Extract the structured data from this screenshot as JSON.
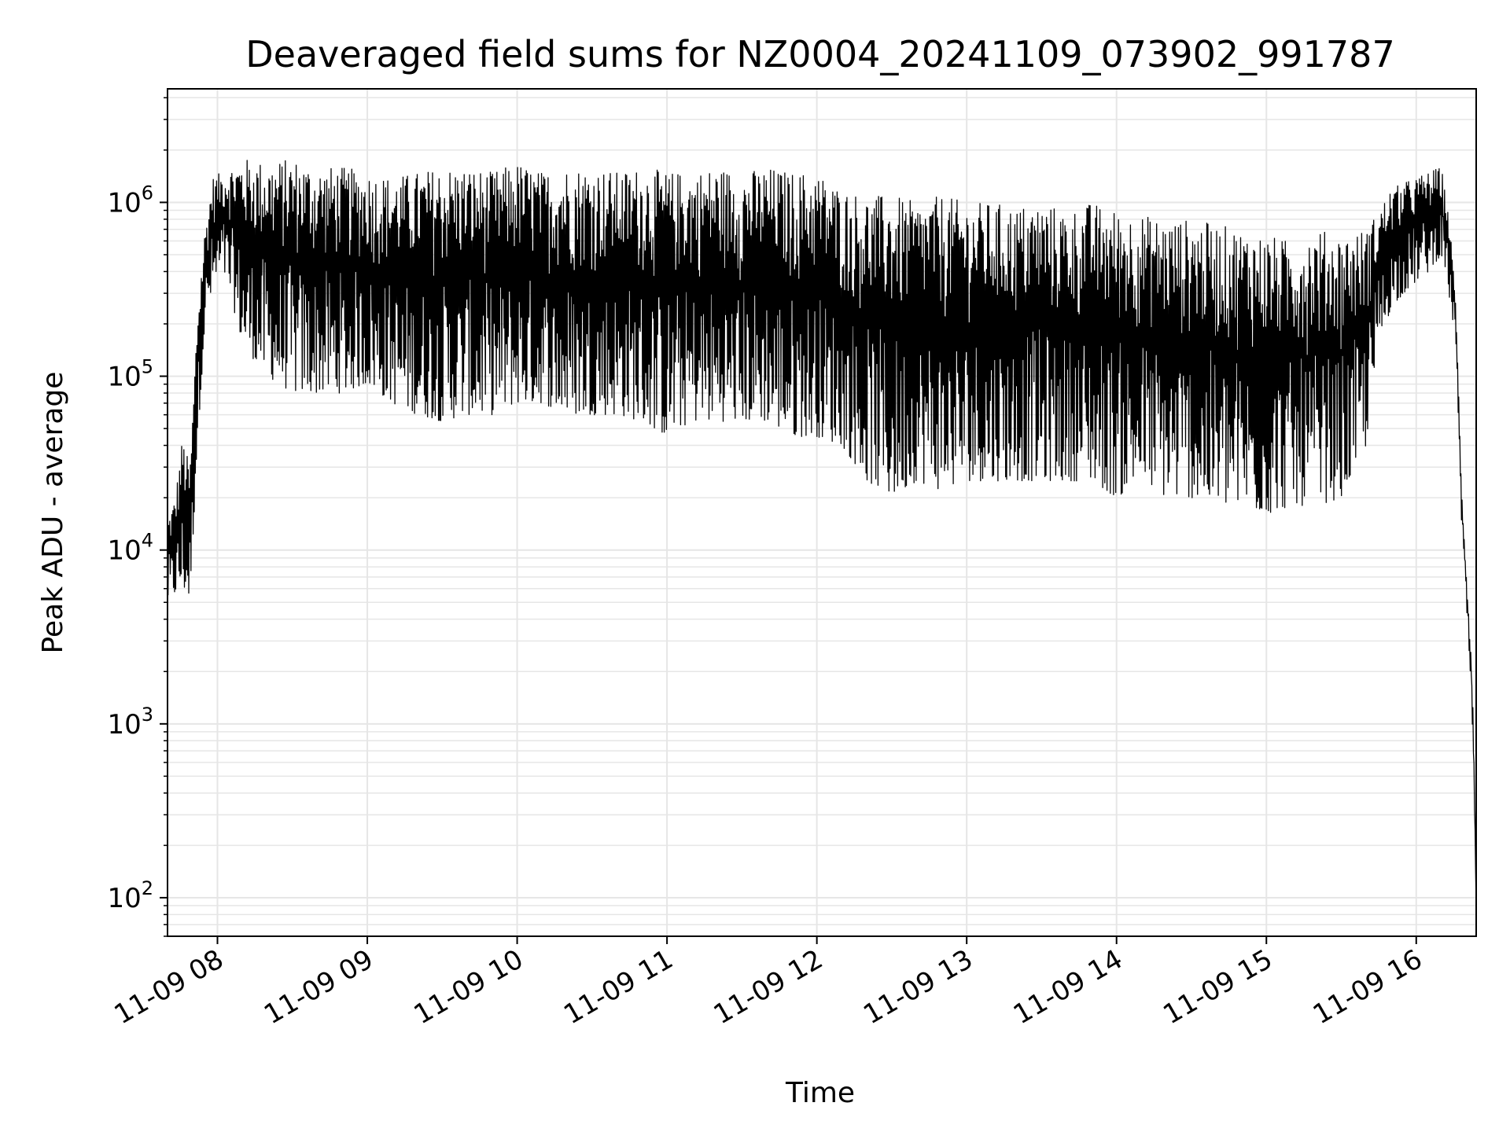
{
  "chart_data": {
    "type": "line",
    "title": "Deaveraged field sums for NZ0004_20241109_073902_991787",
    "xlabel": "Time",
    "ylabel": "Peak ADU - average",
    "yscale": "log",
    "ylim": [
      60,
      4500000
    ],
    "xlim": [
      "2024-11-09 07:40",
      "2024-11-09 16:24"
    ],
    "grid": true,
    "grid_color": "#e6e6e6",
    "line_color": "#000000",
    "x_ticks": [
      {
        "time": "2024-11-09 08:00",
        "label": "11-09 08"
      },
      {
        "time": "2024-11-09 09:00",
        "label": "11-09 09"
      },
      {
        "time": "2024-11-09 10:00",
        "label": "11-09 10"
      },
      {
        "time": "2024-11-09 11:00",
        "label": "11-09 11"
      },
      {
        "time": "2024-11-09 12:00",
        "label": "11-09 12"
      },
      {
        "time": "2024-11-09 13:00",
        "label": "11-09 13"
      },
      {
        "time": "2024-11-09 14:00",
        "label": "11-09 14"
      },
      {
        "time": "2024-11-09 15:00",
        "label": "11-09 15"
      },
      {
        "time": "2024-11-09 16:00",
        "label": "11-09 16"
      }
    ],
    "y_ticks": [
      {
        "value": 100,
        "base": "10",
        "exp": "2"
      },
      {
        "value": 1000,
        "base": "10",
        "exp": "3"
      },
      {
        "value": 10000,
        "base": "10",
        "exp": "4"
      },
      {
        "value": 100000,
        "base": "10",
        "exp": "5"
      },
      {
        "value": 1000000,
        "base": "10",
        "exp": "6"
      }
    ],
    "series": [
      {
        "x": [
          "2024-11-09 07:40",
          "2024-11-09 07:43",
          "2024-11-09 07:46",
          "2024-11-09 07:49",
          "2024-11-09 07:52",
          "2024-11-09 07:55",
          "2024-11-09 07:58",
          "2024-11-09 08:02",
          "2024-11-09 08:05",
          "2024-11-09 08:10",
          "2024-11-09 08:20",
          "2024-11-09 08:30",
          "2024-11-09 08:40",
          "2024-11-09 08:50",
          "2024-11-09 09:00",
          "2024-11-09 09:10",
          "2024-11-09 09:20",
          "2024-11-09 09:30",
          "2024-11-09 09:40",
          "2024-11-09 09:50",
          "2024-11-09 10:00",
          "2024-11-09 10:10",
          "2024-11-09 10:20",
          "2024-11-09 10:30",
          "2024-11-09 10:40",
          "2024-11-09 10:50",
          "2024-11-09 11:00",
          "2024-11-09 11:10",
          "2024-11-09 11:20",
          "2024-11-09 11:30",
          "2024-11-09 11:40",
          "2024-11-09 11:50",
          "2024-11-09 12:00",
          "2024-11-09 12:10",
          "2024-11-09 12:20",
          "2024-11-09 12:30",
          "2024-11-09 12:40",
          "2024-11-09 12:50",
          "2024-11-09 13:00",
          "2024-11-09 13:10",
          "2024-11-09 13:20",
          "2024-11-09 13:30",
          "2024-11-09 13:40",
          "2024-11-09 13:50",
          "2024-11-09 14:00",
          "2024-11-09 14:10",
          "2024-11-09 14:20",
          "2024-11-09 14:30",
          "2024-11-09 14:40",
          "2024-11-09 14:50",
          "2024-11-09 15:00",
          "2024-11-09 15:10",
          "2024-11-09 15:20",
          "2024-11-09 15:30",
          "2024-11-09 15:40",
          "2024-11-09 15:45",
          "2024-11-09 15:50",
          "2024-11-09 15:55",
          "2024-11-09 16:00",
          "2024-11-09 16:05",
          "2024-11-09 16:10",
          "2024-11-09 16:13",
          "2024-11-09 16:16",
          "2024-11-09 16:18",
          "2024-11-09 16:20",
          "2024-11-09 16:22",
          "2024-11-09 16:23",
          "2024-11-09 16:24"
        ],
        "y_max": [
          15000,
          20000,
          45000,
          30000,
          250000,
          700000,
          1400000,
          1500000,
          1600000,
          1800000,
          1700000,
          1800000,
          1600000,
          1600000,
          1500000,
          1400000,
          1500000,
          1600000,
          1600000,
          1500000,
          1700000,
          1500000,
          1600000,
          1600000,
          1500000,
          1600000,
          1500000,
          1500000,
          1600000,
          1500000,
          1600000,
          1500000,
          1500000,
          1200000,
          1100000,
          1100000,
          1000000,
          1100000,
          1000000,
          1000000,
          950000,
          1000000,
          900000,
          1000000,
          900000,
          850000,
          800000,
          800000,
          750000,
          700000,
          650000,
          600000,
          700000,
          650000,
          700000,
          900000,
          1200000,
          1300000,
          1400000,
          1500000,
          1600000,
          900000,
          250000,
          25000,
          8000,
          2500,
          1000,
          90
        ],
        "y_min": [
          5000,
          5500,
          6000,
          5000,
          40000,
          200000,
          300000,
          400000,
          300000,
          150000,
          100000,
          80000,
          80000,
          80000,
          90000,
          70000,
          60000,
          55000,
          60000,
          60000,
          70000,
          70000,
          60000,
          60000,
          60000,
          55000,
          45000,
          55000,
          55000,
          55000,
          55000,
          45000,
          45000,
          40000,
          25000,
          20000,
          25000,
          22000,
          25000,
          25000,
          25000,
          25000,
          25000,
          25000,
          20000,
          25000,
          20000,
          20000,
          18000,
          18000,
          16000,
          18000,
          18000,
          20000,
          40000,
          150000,
          250000,
          300000,
          350000,
          400000,
          500000,
          300000,
          150000,
          15000,
          5000,
          1500,
          500,
          90
        ]
      }
    ]
  }
}
